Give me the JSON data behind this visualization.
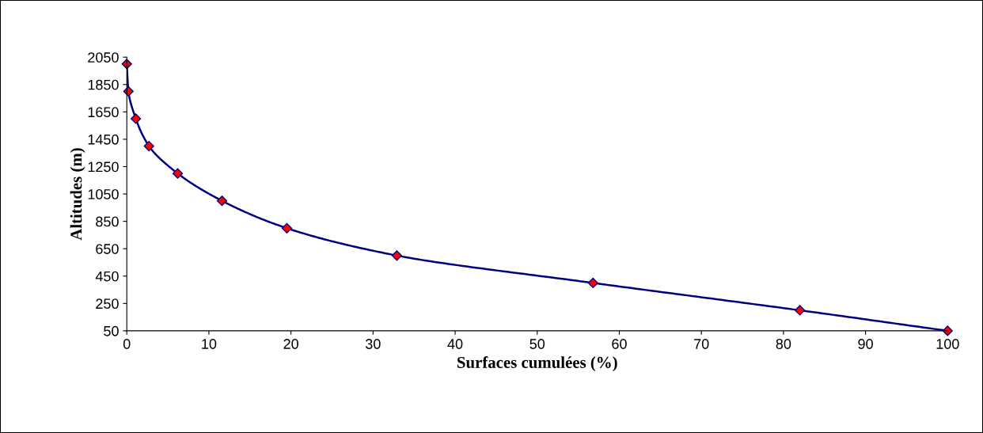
{
  "chart_data": {
    "type": "line",
    "xlabel": "Surfaces cumulées (%)",
    "ylabel": "Altitudes (m)",
    "x": [
      0,
      0.2,
      1.1,
      2.7,
      6.2,
      11.6,
      19.5,
      32.9,
      56.8,
      82.0,
      100
    ],
    "series": [
      {
        "color": "#000080",
        "colors": [
          "#ff0000",
          "#ff0000",
          "#ff0000",
          "#ff0000",
          "#ff0000",
          "#ff0000",
          "#ff0000",
          "#ff0000",
          "#ff0000",
          "#ff0000",
          "#ff0000"
        ],
        "values": [
          2000,
          1800,
          1600,
          1400,
          1200,
          1000,
          800,
          600,
          400,
          200,
          50
        ]
      }
    ],
    "marker": "diamond",
    "line_style": "solid",
    "grid": false,
    "legend": false,
    "xlim": [
      0,
      100
    ],
    "xticks": [
      0,
      10,
      20,
      30,
      40,
      50,
      60,
      70,
      80,
      90,
      100
    ],
    "ylim": [
      50,
      2050
    ],
    "yticks": [
      50,
      250,
      450,
      650,
      850,
      1050,
      1250,
      1450,
      1650,
      1850,
      2050
    ]
  }
}
